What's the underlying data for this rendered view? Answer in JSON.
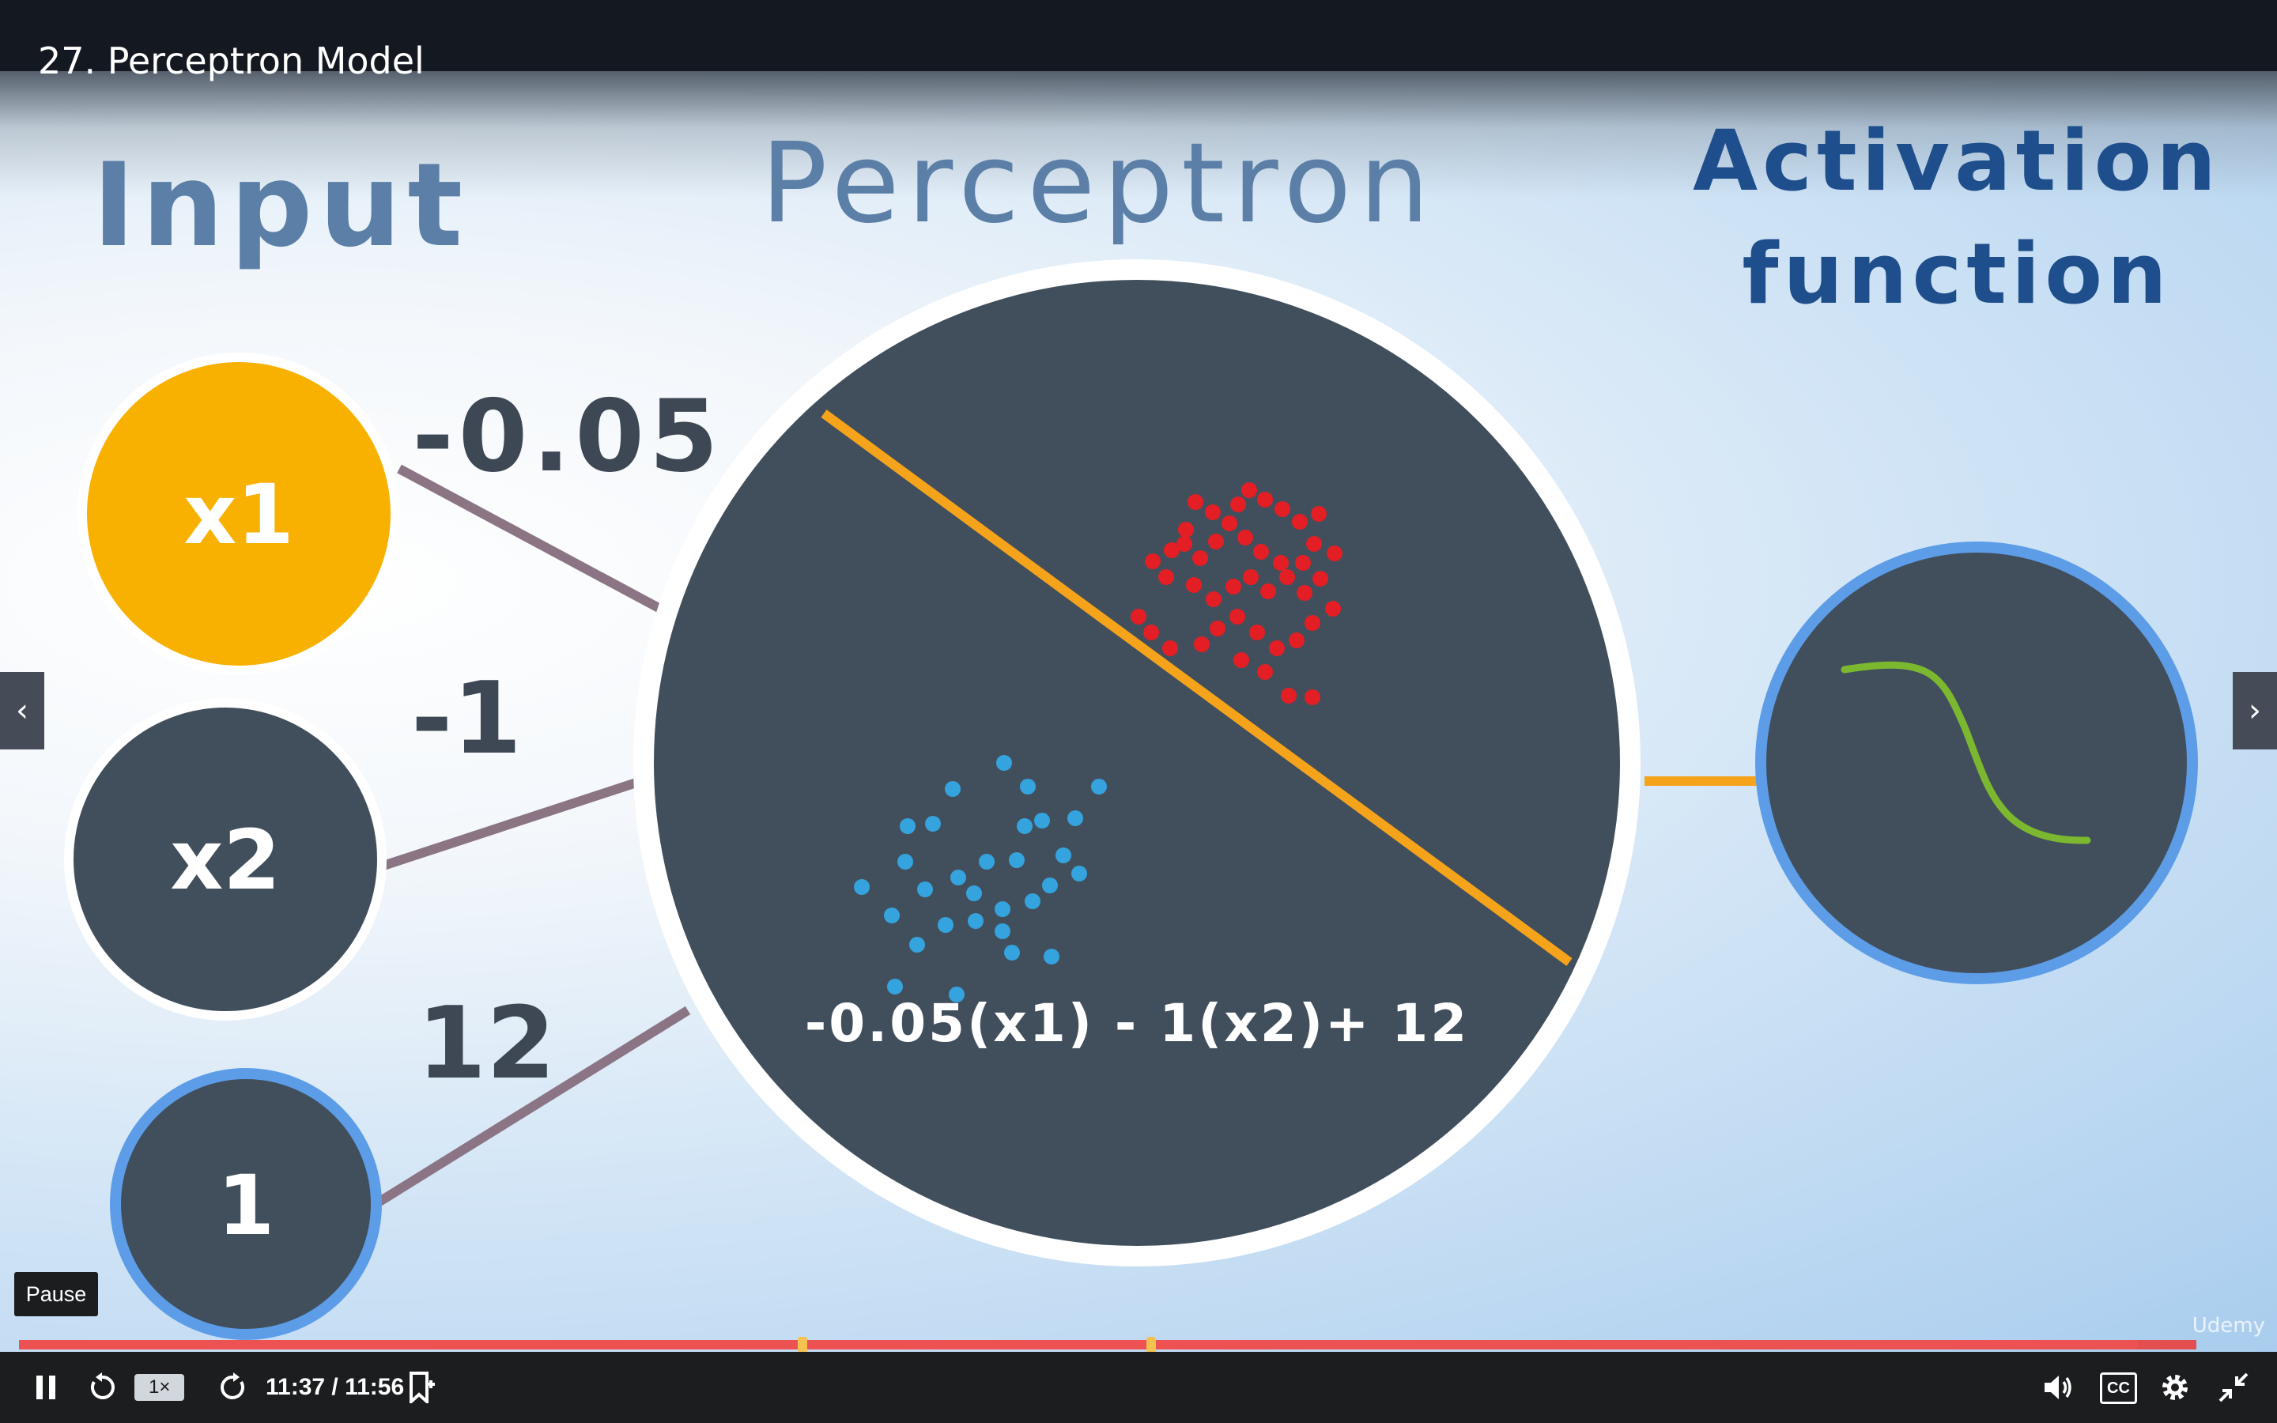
{
  "player": {
    "lecture_title": "27. Perceptron Model",
    "tooltip": "Pause",
    "speed": "1×",
    "time_display": "11:37 / 11:56",
    "progress_fraction": 0.9733,
    "chapter_markers": [
      0.36,
      0.52
    ],
    "icons": {
      "play_pause": "pause-icon",
      "rewind": "rewind-5-icon",
      "forward": "forward-5-icon",
      "bookmark": "add-note-icon",
      "volume": "volume-icon",
      "captions": "closed-captions-icon",
      "settings": "gear-icon",
      "fullscreen": "exit-fullscreen-icon",
      "prev": "chevron-left-icon",
      "next": "chevron-right-icon"
    },
    "captions_label": "CC"
  },
  "slide": {
    "heading_input": "Input",
    "heading_perceptron": "Perceptron",
    "heading_activation_line1": "Activation",
    "heading_activation_line2": "function",
    "nodes": [
      {
        "label": "x1"
      },
      {
        "label": "x2"
      },
      {
        "label": "1"
      }
    ],
    "weights": [
      "-0.05",
      "-1",
      "12"
    ],
    "equation": "-0.05(x1) - 1(x2)+ 12",
    "watermark": "Udemy",
    "colors": {
      "node_dark": "#414f5c",
      "node_highlight": "#f8b100",
      "blue_ring": "#5d9de8",
      "red_points": "#e31e24",
      "blue_points": "#35a3dd",
      "decision_line": "#f5a31a",
      "sigmoid": "#7cb82f"
    }
  }
}
